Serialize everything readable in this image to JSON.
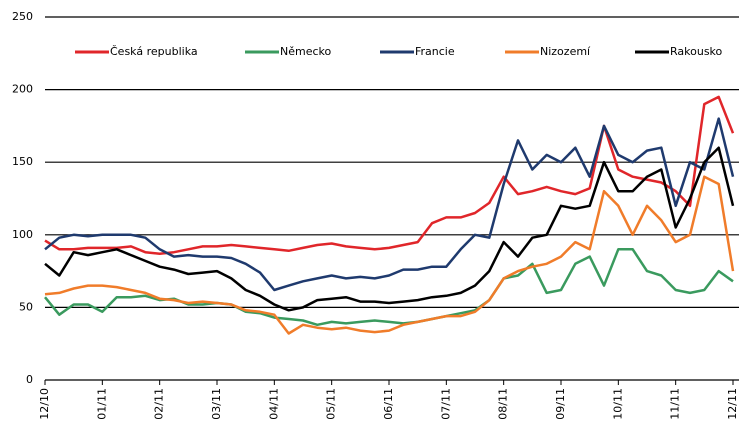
{
  "chart_data": {
    "type": "line",
    "categories": [
      "12/10",
      null,
      null,
      null,
      "01/11",
      null,
      null,
      null,
      "02/11",
      null,
      null,
      null,
      "03/11",
      null,
      null,
      null,
      "04/11",
      null,
      null,
      null,
      "05/11",
      null,
      null,
      null,
      "06/11",
      null,
      null,
      null,
      "07/11",
      null,
      null,
      null,
      "08/11",
      null,
      null,
      null,
      "09/11",
      null,
      null,
      null,
      "10/11",
      null,
      null,
      null,
      "11/11",
      null,
      null,
      null,
      "12/11"
    ],
    "series": [
      {
        "name": "Česká republika",
        "color": "#e0262a",
        "values": [
          96,
          90,
          90,
          91,
          91,
          91,
          92,
          88,
          87,
          88,
          90,
          92,
          92,
          93,
          92,
          91,
          90,
          89,
          91,
          93,
          94,
          92,
          91,
          90,
          91,
          93,
          95,
          108,
          112,
          112,
          115,
          122,
          140,
          128,
          130,
          133,
          130,
          128,
          132,
          175,
          145,
          140,
          138,
          136,
          130,
          120,
          190,
          195,
          170
        ]
      },
      {
        "name": "Německo",
        "color": "#3a9a5e",
        "values": [
          57,
          45,
          52,
          52,
          47,
          57,
          57,
          58,
          55,
          56,
          52,
          52,
          53,
          52,
          47,
          46,
          43,
          42,
          41,
          38,
          40,
          39,
          40,
          41,
          40,
          39,
          40,
          42,
          44,
          46,
          48,
          55,
          70,
          72,
          80,
          60,
          62,
          80,
          85,
          65,
          90,
          90,
          75,
          72,
          62,
          60,
          62,
          75,
          68
        ]
      },
      {
        "name": "Francie",
        "color": "#1f3a6e",
        "values": [
          90,
          98,
          100,
          99,
          100,
          100,
          100,
          98,
          90,
          85,
          86,
          85,
          85,
          84,
          80,
          74,
          62,
          65,
          68,
          70,
          72,
          70,
          71,
          70,
          72,
          76,
          76,
          78,
          78,
          90,
          100,
          98,
          135,
          165,
          145,
          155,
          150,
          160,
          140,
          175,
          155,
          150,
          158,
          160,
          120,
          150,
          145,
          180,
          140
        ]
      },
      {
        "name": "Nizozemí",
        "color": "#f07c2a",
        "values": [
          59,
          60,
          63,
          65,
          65,
          64,
          62,
          60,
          56,
          55,
          53,
          54,
          53,
          52,
          48,
          47,
          45,
          32,
          38,
          36,
          35,
          36,
          34,
          33,
          34,
          38,
          40,
          42,
          44,
          44,
          47,
          55,
          70,
          75,
          78,
          80,
          85,
          95,
          90,
          130,
          120,
          100,
          120,
          110,
          95,
          100,
          140,
          135,
          75
        ]
      },
      {
        "name": "Rakousko",
        "color": "#000000",
        "values": [
          80,
          72,
          88,
          86,
          88,
          90,
          86,
          82,
          78,
          76,
          73,
          74,
          75,
          70,
          62,
          58,
          52,
          48,
          50,
          55,
          56,
          57,
          54,
          54,
          53,
          54,
          55,
          57,
          58,
          60,
          65,
          75,
          95,
          85,
          98,
          100,
          120,
          118,
          120,
          150,
          130,
          130,
          140,
          145,
          105,
          125,
          150,
          160,
          120
        ]
      }
    ],
    "ylim": [
      0,
      250
    ],
    "yticks": [
      0,
      50,
      100,
      150,
      200,
      250
    ],
    "grid": true,
    "legend": "top"
  }
}
